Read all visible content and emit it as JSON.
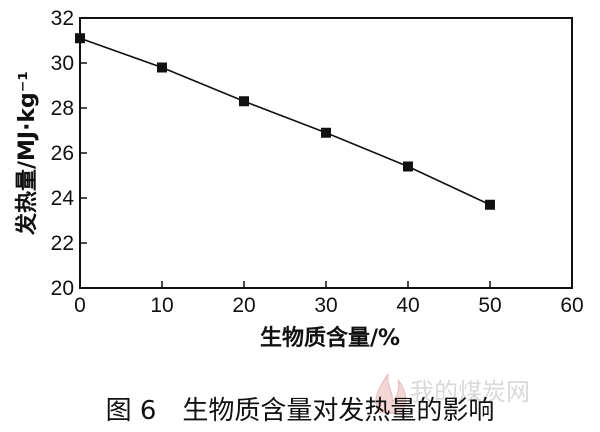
{
  "chart_data": {
    "type": "line",
    "x": [
      0,
      10,
      20,
      30,
      40,
      50
    ],
    "series": [
      {
        "values": [
          31.1,
          29.8,
          28.3,
          26.9,
          25.4,
          23.7
        ]
      }
    ],
    "xlabel": "生物质含量/%",
    "ylabel": "发热量/MJ·kg⁻¹",
    "xlim": [
      0,
      60
    ],
    "ylim": [
      20,
      32
    ],
    "xticks": [
      "0",
      "10",
      "20",
      "30",
      "40",
      "50",
      "60"
    ],
    "yticks": [
      "20",
      "22",
      "24",
      "26",
      "28",
      "30",
      "32"
    ],
    "marker": "square",
    "grid": false
  },
  "caption": "图 6　生物质含量对发热量的影响",
  "watermark": "我的煤炭网",
  "colors": {
    "line": "#111111",
    "marker": "#111111",
    "watermark": "#d9d9d9"
  }
}
